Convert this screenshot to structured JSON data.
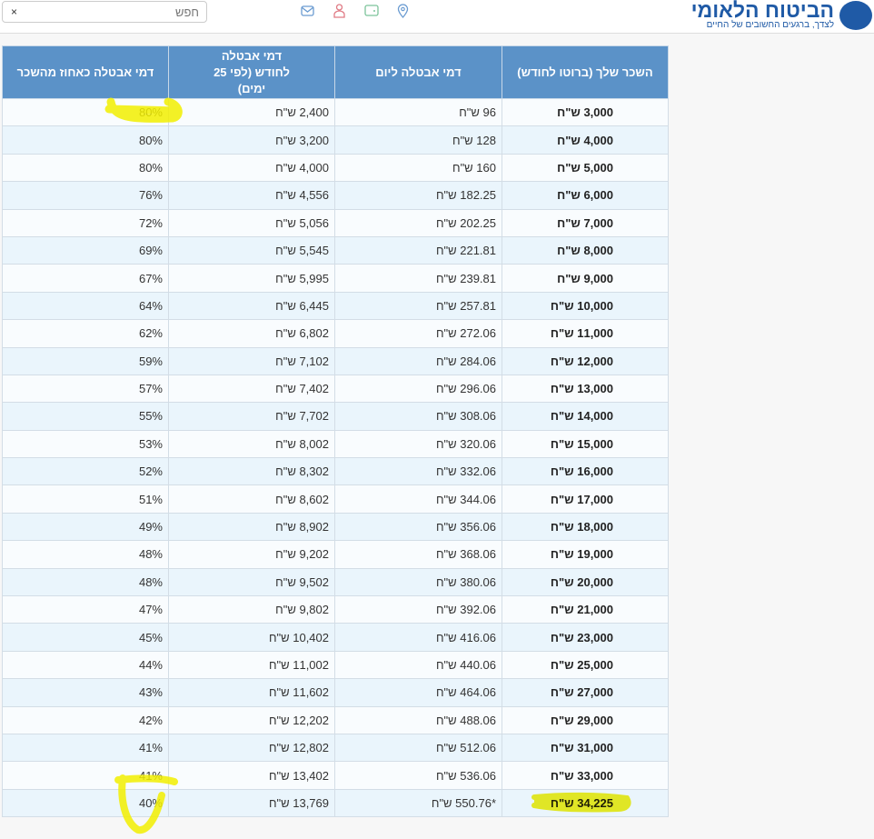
{
  "header": {
    "search_placeholder": "חפש",
    "search_clear": "×",
    "logo_title": "הביטוח הלאומי",
    "logo_tagline": "לצדך, ברגעים החשובים של החיים",
    "icons": [
      "location-icon",
      "wallet-icon",
      "user-icon",
      "mail-icon"
    ]
  },
  "table": {
    "columns": [
      "השכר שלך (ברוטו לחודש)",
      "דמי אבטלה ליום",
      "דמי אבטלה לחודש (לפי 25 ימים)",
      "דמי אבטלה כאחוז מהשכר"
    ],
    "rows": [
      [
        "3,000 ש\"ח",
        "96 ש\"ח",
        "2,400 ש\"ח",
        "80%"
      ],
      [
        "4,000 ש\"ח",
        "128 ש\"ח",
        "3,200 ש\"ח",
        "80%"
      ],
      [
        "5,000 ש\"ח",
        "160 ש\"ח",
        "4,000 ש\"ח",
        "80%"
      ],
      [
        "6,000 ש\"ח",
        "182.25 ש\"ח",
        "4,556 ש\"ח",
        "76%"
      ],
      [
        "7,000 ש\"ח",
        "202.25 ש\"ח",
        "5,056 ש\"ח",
        "72%"
      ],
      [
        "8,000 ש\"ח",
        "221.81 ש\"ח",
        "5,545 ש\"ח",
        "69%"
      ],
      [
        "9,000 ש\"ח",
        "239.81 ש\"ח",
        "5,995 ש\"ח",
        "67%"
      ],
      [
        "10,000 ש\"ח",
        "257.81 ש\"ח",
        "6,445 ש\"ח",
        "64%"
      ],
      [
        "11,000 ש\"ח",
        "272.06 ש\"ח",
        "6,802 ש\"ח",
        "62%"
      ],
      [
        "12,000 ש\"ח",
        "284.06 ש\"ח",
        "7,102 ש\"ח",
        "59%"
      ],
      [
        "13,000 ש\"ח",
        "296.06 ש\"ח",
        "7,402 ש\"ח",
        "57%"
      ],
      [
        "14,000 ש\"ח",
        "308.06 ש\"ח",
        "7,702 ש\"ח",
        "55%"
      ],
      [
        "15,000 ש\"ח",
        "320.06 ש\"ח",
        "8,002 ש\"ח",
        "53%"
      ],
      [
        "16,000 ש\"ח",
        "332.06 ש\"ח",
        "8,302 ש\"ח",
        "52%"
      ],
      [
        "17,000 ש\"ח",
        "344.06 ש\"ח",
        "8,602 ש\"ח",
        "51%"
      ],
      [
        "18,000 ש\"ח",
        "356.06 ש\"ח",
        "8,902 ש\"ח",
        "49%"
      ],
      [
        "19,000 ש\"ח",
        "368.06 ש\"ח",
        "9,202 ש\"ח",
        "48%"
      ],
      [
        "20,000 ש\"ח",
        "380.06 ש\"ח",
        "9,502 ש\"ח",
        "48%"
      ],
      [
        "21,000 ש\"ח",
        "392.06 ש\"ח",
        "9,802 ש\"ח",
        "47%"
      ],
      [
        "23,000 ש\"ח",
        "416.06 ש\"ח",
        "10,402 ש\"ח",
        "45%"
      ],
      [
        "25,000 ש\"ח",
        "440.06 ש\"ח",
        "11,002 ש\"ח",
        "44%"
      ],
      [
        "27,000 ש\"ח",
        "464.06 ש\"ח",
        "11,602 ש\"ח",
        "43%"
      ],
      [
        "29,000 ש\"ח",
        "488.06 ש\"ח",
        "12,202 ש\"ח",
        "42%"
      ],
      [
        "31,000 ש\"ח",
        "512.06 ש\"ח",
        "12,802 ש\"ח",
        "41%"
      ],
      [
        "33,000 ש\"ח",
        "536.06 ש\"ח",
        "13,402 ש\"ח",
        "41%"
      ],
      [
        "34,225 ש\"ח",
        "*550.76 ש\"ח",
        "13,769 ש\"ח",
        "40%"
      ]
    ]
  },
  "colors": {
    "header_bg": "#5b92c8",
    "highlight": "#f5f000",
    "brand": "#1f5aa6"
  }
}
